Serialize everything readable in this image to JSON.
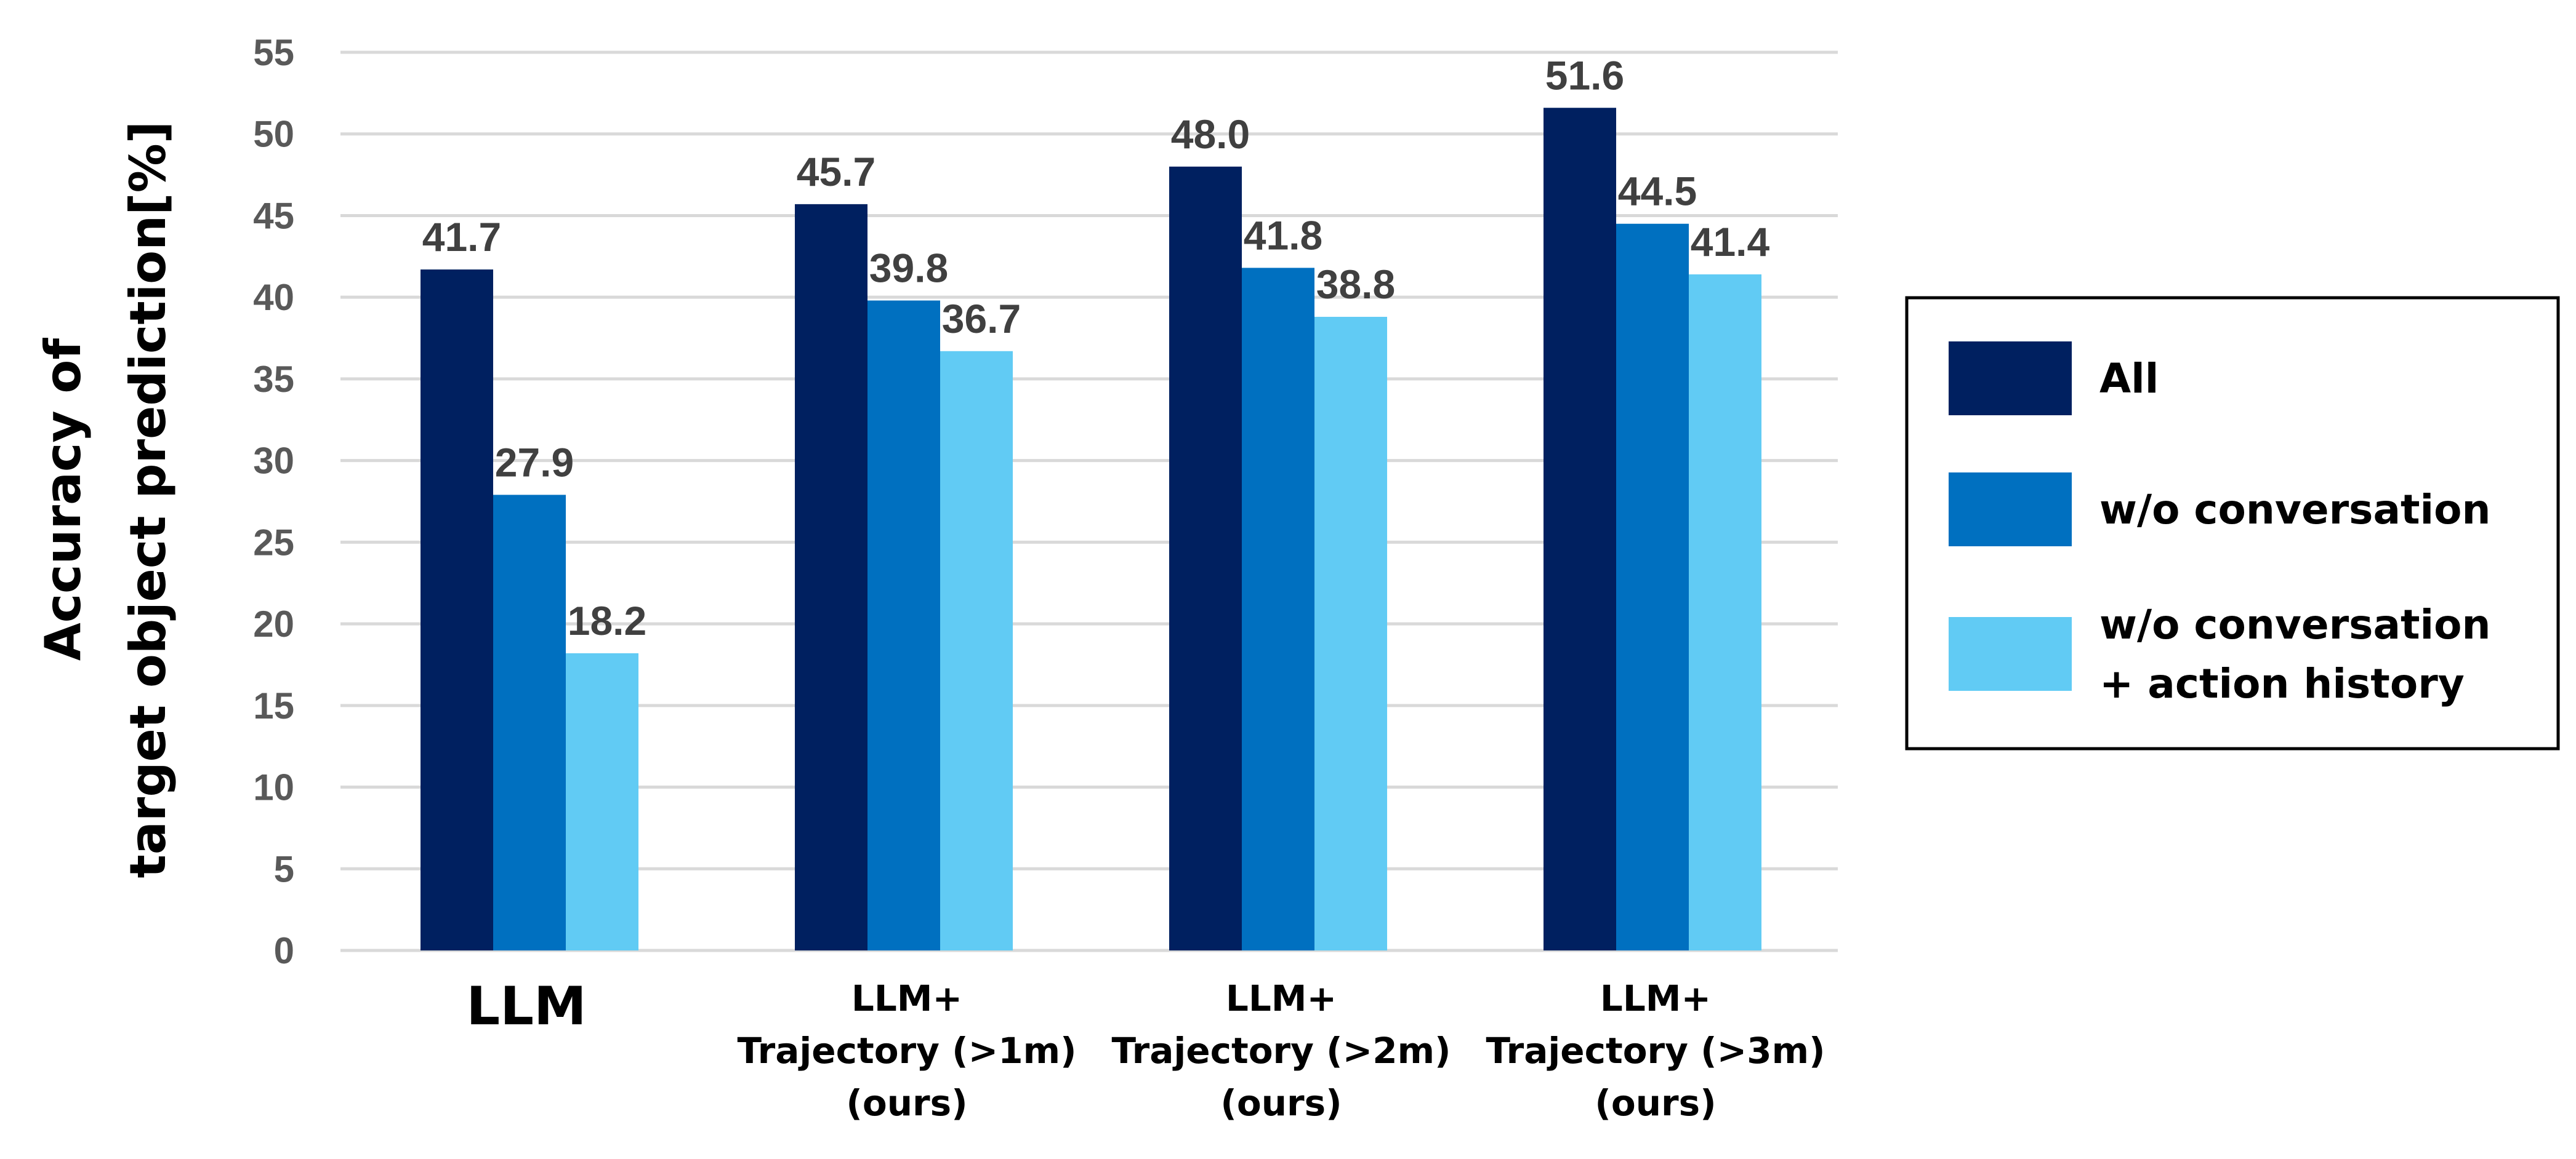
{
  "chart_data": {
    "type": "bar",
    "categories": [
      [
        "LLM"
      ],
      [
        "LLM+",
        "Trajectory (>1m)",
        "(ours)"
      ],
      [
        "LLM+",
        "Trajectory (>2m)",
        "(ours)"
      ],
      [
        "LLM+",
        "Trajectory (>3m)",
        "(ours)"
      ]
    ],
    "series": [
      {
        "name": "All",
        "lines": [
          "All"
        ],
        "color": "#002060",
        "values": [
          41.7,
          45.7,
          48.0,
          51.6
        ],
        "labels": [
          "41.7",
          "45.7",
          "48.0",
          "51.6"
        ]
      },
      {
        "name": "w/o conversation",
        "lines": [
          "w/o conversation"
        ],
        "color": "#0070C0",
        "values": [
          27.9,
          39.8,
          41.8,
          44.5
        ],
        "labels": [
          "27.9",
          "39.8",
          "41.8",
          "44.5"
        ]
      },
      {
        "name": "w/o conversation + action history",
        "lines": [
          "w/o conversation",
          "+ action history"
        ],
        "color": "#61CBF4",
        "values": [
          18.2,
          36.7,
          38.8,
          41.4
        ],
        "labels": [
          "18.2",
          "36.7",
          "38.8",
          "41.4"
        ]
      }
    ],
    "ylabel_lines": [
      "Accuracy of",
      "target object prediction[%]"
    ],
    "xlabel": "",
    "title": "",
    "ylim": [
      0,
      55
    ],
    "yticks": [
      0,
      5,
      10,
      15,
      20,
      25,
      30,
      35,
      40,
      45,
      50,
      55
    ],
    "grid": true,
    "legend_position": "right"
  }
}
